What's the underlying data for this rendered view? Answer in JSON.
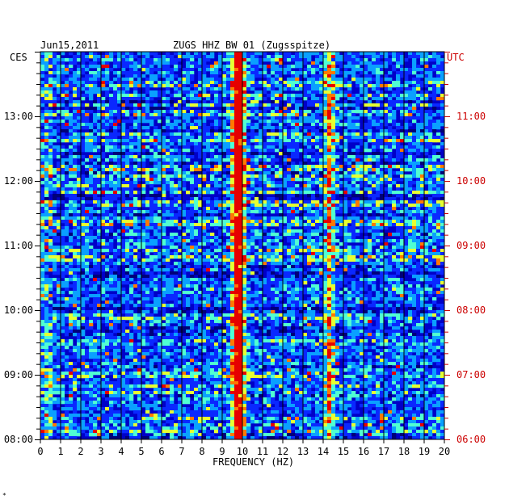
{
  "chart_data": {
    "type": "heatmap",
    "date": "Jun15,2011",
    "station": "ZUGS HHZ BW 01 (Zugsspitze)",
    "left_tz": "CES",
    "right_tz": "UTC",
    "xlabel": "FREQUENCY (HZ)",
    "xlim": [
      0,
      20
    ],
    "x_ticks": [
      "0",
      "1",
      "2",
      "3",
      "4",
      "5",
      "6",
      "7",
      "8",
      "9",
      "10",
      "11",
      "12",
      "13",
      "14",
      "15",
      "16",
      "17",
      "18",
      "19",
      "20"
    ],
    "ces_ticks": [
      "08:00",
      "09:00",
      "10:00",
      "11:00",
      "12:00",
      "13:00"
    ],
    "utc_ticks": [
      "06:00",
      "07:00",
      "08:00",
      "09:00",
      "10:00",
      "11:00"
    ],
    "time_range_ces": [
      "08:00",
      "14:00"
    ],
    "grid": "vertical lines every 1 Hz",
    "colormap": [
      "#00007a",
      "#0000c8",
      "#0a28ff",
      "#0aa0ff",
      "#50ffd2",
      "#e6ff32",
      "#ff7800",
      "#e60000"
    ],
    "dominant_bands_hz": [
      9.8,
      14.3
    ],
    "footnote": "*"
  }
}
